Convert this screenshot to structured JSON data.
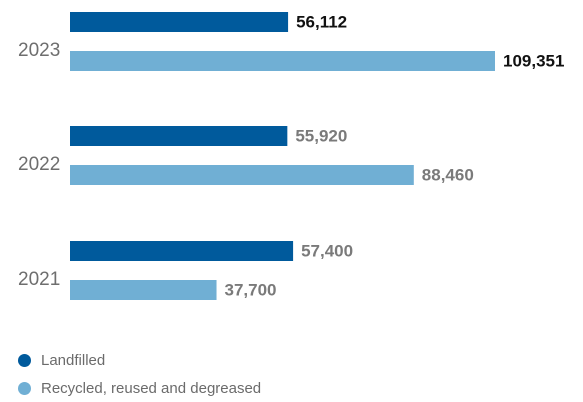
{
  "chart_data": {
    "type": "bar",
    "orientation": "horizontal",
    "categories": [
      "2023",
      "2022",
      "2021"
    ],
    "series": [
      {
        "name": "Landfilled",
        "color": "#005a9c",
        "values": [
          56112,
          55920,
          57400
        ],
        "labels": [
          "56,112",
          "55,920",
          "57,400"
        ]
      },
      {
        "name": "Recycled, reused and degreased",
        "color": "#70afd4",
        "values": [
          109351,
          88460,
          37700
        ],
        "labels": [
          "109,351",
          "88,460",
          "37,700"
        ]
      }
    ],
    "label_colors": [
      "#111111",
      "#7a7a7a",
      "#7a7a7a"
    ],
    "xlim": [
      0,
      109351
    ],
    "grid": false,
    "legend_position": "bottom-left",
    "title": "",
    "xlabel": "",
    "ylabel": ""
  }
}
